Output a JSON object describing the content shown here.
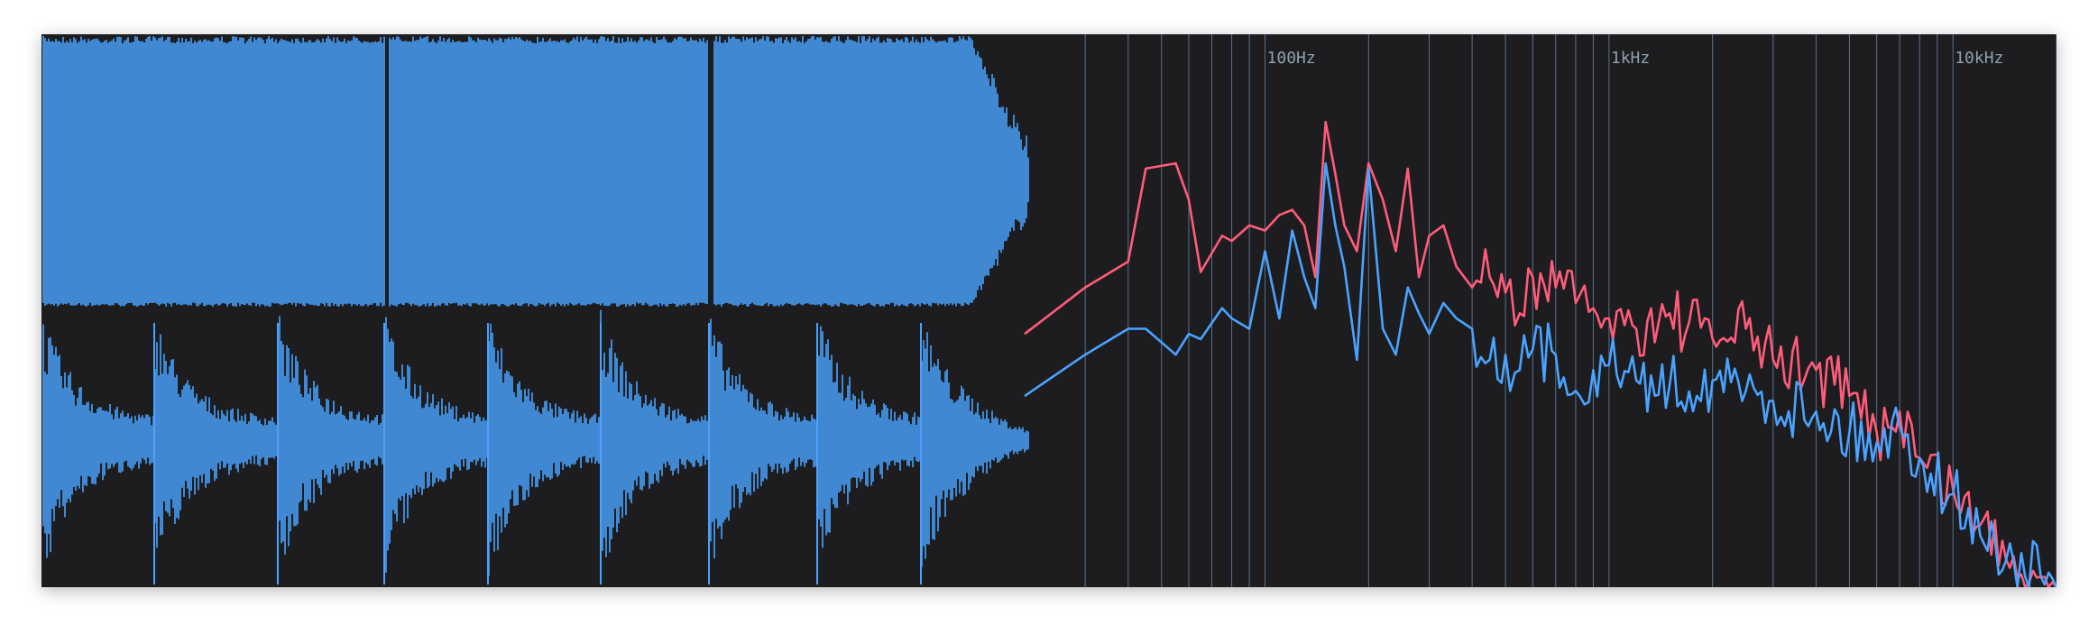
{
  "spectrum": {
    "freq_labels": [
      {
        "hz": 100,
        "text": "100Hz"
      },
      {
        "hz": 1000,
        "text": "1kHz"
      },
      {
        "hz": 10000,
        "text": "10kHz"
      }
    ],
    "colors": {
      "background": "#1d1d1f",
      "waveform": "#4aa3ff",
      "grid": "#6b8db8",
      "series_red": "#ff5c7a",
      "series_blue": "#4aa3ff"
    },
    "x_scale": "log",
    "x_range_hz": [
      20,
      20000
    ]
  },
  "chart_data": {
    "type": "line",
    "x_scale": "log",
    "series": [
      {
        "color": "#ff5c7a",
        "x": [
          20,
          30,
          40,
          45,
          55,
          60,
          65,
          75,
          80,
          90,
          100,
          110,
          120,
          130,
          140,
          150,
          160,
          170,
          185,
          200,
          220,
          240,
          260,
          280,
          300,
          330,
          360,
          400,
          450,
          500,
          550,
          600,
          700,
          800,
          900,
          1000,
          1200,
          1500,
          2000,
          2500,
          3000,
          4000,
          5000,
          6000,
          7000,
          8000,
          10000,
          12000,
          15000,
          18000,
          20000
        ],
        "y": [
          0.51,
          0.42,
          0.37,
          0.19,
          0.18,
          0.25,
          0.39,
          0.32,
          0.33,
          0.3,
          0.31,
          0.28,
          0.27,
          0.3,
          0.4,
          0.1,
          0.2,
          0.3,
          0.35,
          0.18,
          0.25,
          0.35,
          0.19,
          0.4,
          0.32,
          0.3,
          0.38,
          0.42,
          0.4,
          0.43,
          0.47,
          0.4,
          0.42,
          0.45,
          0.46,
          0.48,
          0.5,
          0.47,
          0.52,
          0.5,
          0.56,
          0.58,
          0.63,
          0.7,
          0.66,
          0.75,
          0.81,
          0.88,
          0.94,
          0.98,
          1.0
        ]
      },
      {
        "color": "#4aa3ff",
        "x": [
          20,
          30,
          40,
          45,
          55,
          60,
          65,
          75,
          80,
          90,
          100,
          110,
          120,
          130,
          140,
          150,
          160,
          170,
          185,
          200,
          220,
          240,
          260,
          280,
          300,
          330,
          360,
          400,
          450,
          500,
          550,
          600,
          700,
          800,
          900,
          1000,
          1200,
          1500,
          2000,
          2500,
          3000,
          4000,
          5000,
          6000,
          7000,
          8000,
          10000,
          12000,
          15000,
          18000,
          20000
        ],
        "y": [
          0.63,
          0.55,
          0.5,
          0.5,
          0.55,
          0.51,
          0.52,
          0.46,
          0.48,
          0.5,
          0.35,
          0.48,
          0.31,
          0.4,
          0.46,
          0.18,
          0.3,
          0.38,
          0.56,
          0.19,
          0.5,
          0.55,
          0.42,
          0.47,
          0.51,
          0.45,
          0.48,
          0.5,
          0.56,
          0.55,
          0.58,
          0.54,
          0.55,
          0.62,
          0.58,
          0.57,
          0.6,
          0.61,
          0.6,
          0.62,
          0.64,
          0.66,
          0.7,
          0.72,
          0.69,
          0.75,
          0.82,
          0.9,
          0.95,
          0.98,
          1.0
        ]
      }
    ]
  }
}
